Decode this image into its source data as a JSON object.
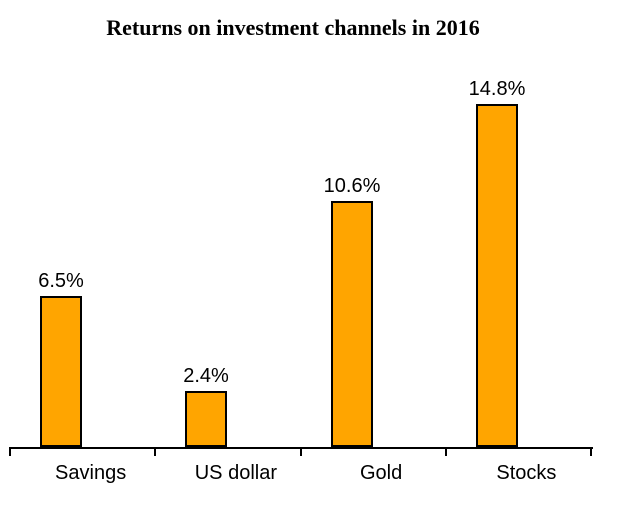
{
  "chart_data": {
    "type": "bar",
    "title": "Returns on investment channels in 2016",
    "categories": [
      "Savings",
      "US dollar",
      "Gold",
      "Stocks"
    ],
    "values": [
      6.5,
      2.4,
      10.6,
      14.8
    ],
    "data_labels": [
      "6.5%",
      "2.4%",
      "10.6%",
      "14.8%"
    ],
    "xlabel": "",
    "ylabel": "",
    "ylim": [
      0,
      16
    ],
    "grid": false,
    "legend_position": "none",
    "y_axis_visible": false,
    "bar_fill_color": "#FFA500",
    "bar_border_color": "#000000",
    "axis_color": "#000000",
    "text_color": "#000000",
    "background_color": "#FFFFFF"
  }
}
